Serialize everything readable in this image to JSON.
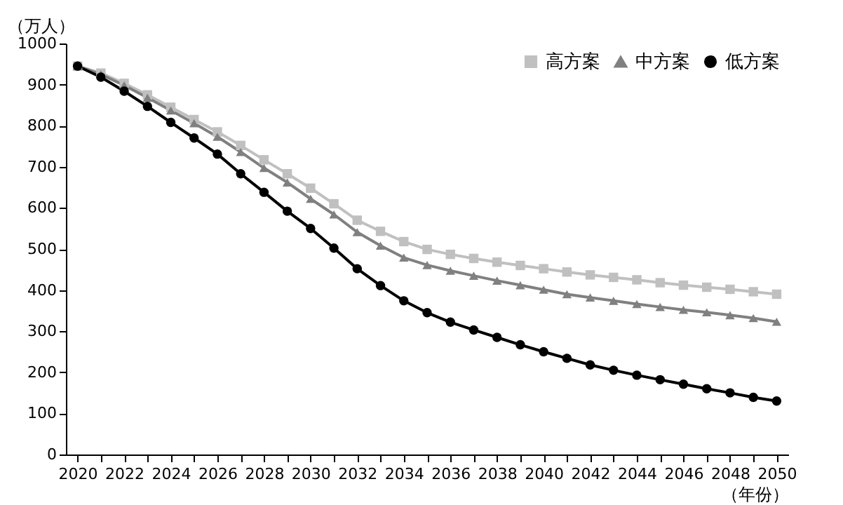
{
  "chart_data": {
    "type": "line",
    "categories": [
      "2020",
      null,
      "2022",
      null,
      "2024",
      null,
      "2026",
      null,
      "2028",
      null,
      "2030",
      null,
      "2032",
      null,
      "2034",
      null,
      "2036",
      null,
      "2038",
      null,
      "2040",
      null,
      "2042",
      null,
      "2044",
      null,
      "2046",
      null,
      "2048",
      null,
      "2050"
    ],
    "series": [
      {
        "name": "高方案",
        "color": "#c0c0c0",
        "marker": "square",
        "values": [
          945,
          928,
          903,
          875,
          845,
          815,
          785,
          752,
          717,
          683,
          648,
          610,
          570,
          543,
          518,
          499,
          487,
          477,
          468,
          460,
          452,
          444,
          437,
          431,
          425,
          418,
          412,
          407,
          402,
          396,
          390
        ]
      },
      {
        "name": "中方案",
        "color": "#808080",
        "marker": "triangle",
        "values": [
          945,
          925,
          898,
          868,
          837,
          806,
          773,
          736,
          697,
          662,
          622,
          584,
          541,
          508,
          479,
          461,
          447,
          435,
          423,
          412,
          401,
          390,
          382,
          374,
          366,
          359,
          352,
          346,
          339,
          332,
          323
        ]
      },
      {
        "name": "低方案",
        "color": "#000000",
        "marker": "circle",
        "values": [
          945,
          918,
          884,
          847,
          808,
          770,
          731,
          683,
          638,
          592,
          550,
          502,
          452,
          411,
          374,
          345,
          322,
          303,
          285,
          267,
          250,
          234,
          218,
          205,
          193,
          182,
          171,
          160,
          150,
          139,
          130
        ]
      }
    ],
    "ylabel": "（万人）",
    "xlabel": "（年份）",
    "ylim": [
      0,
      1000
    ],
    "yticks": [
      0,
      100,
      200,
      300,
      400,
      500,
      600,
      700,
      800,
      900,
      1000
    ],
    "grid": false,
    "legend": "top right",
    "line_style": "solid"
  }
}
